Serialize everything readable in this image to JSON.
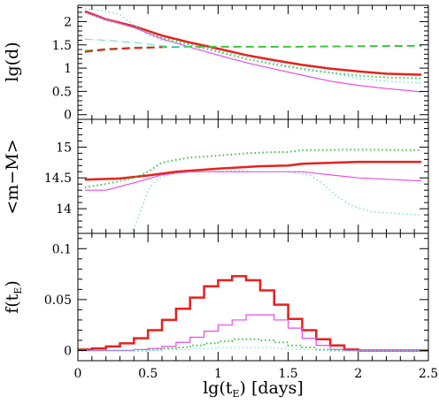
{
  "chart_data": [
    {
      "type": "line",
      "id": "top",
      "ylabel": "lg(d)",
      "xlim": [
        0,
        2.5
      ],
      "ylim": [
        -0.1,
        2.35
      ],
      "xticks": [
        "0",
        "0.5",
        "1",
        "1.5",
        "2",
        "2.5"
      ],
      "yticks": [
        {
          "v": 0,
          "label": "0"
        },
        {
          "v": 0.5,
          "label": "0.5"
        },
        {
          "v": 1,
          "label": "1"
        },
        {
          "v": 1.5,
          "label": "1.5"
        },
        {
          "v": 2,
          "label": "2"
        }
      ],
      "series": [
        {
          "color": "#e8201c",
          "style": "solid",
          "width": 2.5,
          "x": [
            0.05,
            0.2,
            0.4,
            0.6,
            0.8,
            1.0,
            1.2,
            1.4,
            1.6,
            1.8,
            2.0,
            2.2,
            2.45
          ],
          "y": [
            2.22,
            2.05,
            1.9,
            1.7,
            1.55,
            1.42,
            1.28,
            1.17,
            1.07,
            0.99,
            0.93,
            0.88,
            0.86
          ]
        },
        {
          "color": "#3fc43f",
          "style": "dotted",
          "width": 2,
          "x": [
            0.05,
            0.2,
            0.4,
            0.6,
            0.8,
            1.0,
            1.2,
            1.4,
            1.6,
            1.8,
            2.0,
            2.2,
            2.45
          ],
          "y": [
            2.2,
            2.03,
            1.88,
            1.66,
            1.5,
            1.35,
            1.2,
            1.08,
            0.98,
            0.9,
            0.84,
            0.8,
            0.78
          ]
        },
        {
          "color": "#e64ce6",
          "style": "solid",
          "width": 1.2,
          "x": [
            0.05,
            0.2,
            0.4,
            0.6,
            0.8,
            1.0,
            1.2,
            1.4,
            1.6,
            1.8,
            2.0,
            2.2,
            2.45
          ],
          "y": [
            2.2,
            2.05,
            1.87,
            1.63,
            1.45,
            1.28,
            1.12,
            0.98,
            0.85,
            0.72,
            0.63,
            0.56,
            0.49
          ]
        },
        {
          "color": "#5fd4e6",
          "style": "dotted",
          "width": 1.2,
          "x": [
            0.05,
            0.2,
            0.3,
            0.4,
            0.5,
            0.6,
            0.8,
            1.0,
            1.2,
            1.4,
            1.6,
            1.8,
            2.0,
            2.2,
            2.45
          ],
          "y": [
            2.28,
            2.22,
            2.15,
            1.92,
            1.72,
            1.6,
            1.5,
            1.38,
            1.25,
            1.12,
            1.0,
            0.9,
            0.78,
            0.72,
            0.68
          ]
        },
        {
          "color": "#3fc43f",
          "style": "dashed",
          "width": 2,
          "x": [
            0.05,
            0.2,
            0.4,
            0.6,
            0.8,
            1.0,
            1.5,
            2.0,
            2.45
          ],
          "y": [
            1.37,
            1.41,
            1.44,
            1.45,
            1.46,
            1.46,
            1.46,
            1.47,
            1.48
          ]
        },
        {
          "color": "#e8201c",
          "style": "dashed",
          "width": 2,
          "x": [
            0.05,
            0.2,
            0.4,
            0.6
          ],
          "y": [
            1.35,
            1.4,
            1.43,
            1.45
          ]
        },
        {
          "color": "#5fd4e6",
          "style": "dashed",
          "width": 1,
          "x": [
            0.05,
            0.2,
            0.4,
            0.6,
            0.8
          ],
          "y": [
            1.62,
            1.6,
            1.55,
            1.48,
            1.45
          ]
        }
      ]
    },
    {
      "type": "line",
      "id": "middle",
      "ylabel": "<m−M>",
      "xlim": [
        0,
        2.5
      ],
      "ylim": [
        13.6,
        15.45
      ],
      "xticks": [
        "0",
        "0.5",
        "1",
        "1.5",
        "2",
        "2.5"
      ],
      "yticks": [
        {
          "v": 14,
          "label": "14"
        },
        {
          "v": 14.5,
          "label": "14.5"
        },
        {
          "v": 15,
          "label": "15"
        }
      ],
      "series": [
        {
          "color": "#e8201c",
          "style": "solid",
          "width": 2.5,
          "x": [
            0.05,
            0.3,
            0.5,
            0.7,
            1.0,
            1.3,
            1.5,
            1.6,
            2.0,
            2.45
          ],
          "y": [
            14.47,
            14.49,
            14.54,
            14.6,
            14.65,
            14.69,
            14.7,
            14.73,
            14.76,
            14.76
          ]
        },
        {
          "color": "#3fc43f",
          "style": "dotted",
          "width": 2,
          "x": [
            0.05,
            0.2,
            0.4,
            0.5,
            0.6,
            0.8,
            1.0,
            1.2,
            1.4,
            1.5,
            1.6,
            2.0,
            2.45
          ],
          "y": [
            14.35,
            14.4,
            14.5,
            14.6,
            14.75,
            14.83,
            14.86,
            14.9,
            14.92,
            14.92,
            14.95,
            14.96,
            14.95
          ]
        },
        {
          "color": "#e64ce6",
          "style": "solid",
          "width": 1.2,
          "x": [
            0.05,
            0.2,
            0.4,
            0.6,
            0.8,
            1.0,
            1.3,
            1.6,
            1.8,
            2.0,
            2.45
          ],
          "y": [
            14.3,
            14.3,
            14.42,
            14.55,
            14.6,
            14.6,
            14.6,
            14.6,
            14.55,
            14.5,
            14.45
          ]
        },
        {
          "color": "#5fd4e6",
          "style": "dotted",
          "width": 1.2,
          "x": [
            0.38,
            0.42,
            0.47,
            0.5,
            0.55,
            0.6,
            0.7,
            0.9,
            1.1,
            1.3,
            1.5,
            1.65,
            1.75,
            1.85,
            1.95,
            2.1,
            2.3,
            2.45
          ],
          "y": [
            13.6,
            13.8,
            14.1,
            14.3,
            14.45,
            14.52,
            14.58,
            14.6,
            14.62,
            14.6,
            14.6,
            14.55,
            14.4,
            14.2,
            14.05,
            13.95,
            13.92,
            13.9
          ]
        }
      ]
    },
    {
      "type": "bar",
      "id": "bottom",
      "ylabel": "f(t",
      "ylabel_sub": "E",
      "ylabel_close": ")",
      "xlabel": "lg(t",
      "xlabel_sub": "E",
      "xlabel_close": ")  [days]",
      "xlim": [
        0,
        2.5
      ],
      "ylim": [
        -0.01,
        0.115
      ],
      "xticks": [
        "0",
        "0.5",
        "1",
        "1.5",
        "2",
        "2.5"
      ],
      "yticks": [
        {
          "v": 0,
          "label": "0"
        },
        {
          "v": 0.05,
          "label": "0.05"
        },
        {
          "v": 0.1,
          "label": "0.1"
        }
      ],
      "bin_edges": [
        0,
        0.1,
        0.2,
        0.3,
        0.4,
        0.5,
        0.6,
        0.7,
        0.8,
        0.9,
        1.0,
        1.1,
        1.2,
        1.3,
        1.4,
        1.5,
        1.6,
        1.7,
        1.8,
        1.9,
        2.0
      ],
      "series": [
        {
          "color": "#e8201c",
          "width": 2.5,
          "values": [
            0.001,
            0.002,
            0.004,
            0.007,
            0.012,
            0.02,
            0.03,
            0.041,
            0.052,
            0.063,
            0.069,
            0.073,
            0.069,
            0.059,
            0.045,
            0.031,
            0.02,
            0.011,
            0.005,
            0.001
          ]
        },
        {
          "color": "#e64ce6",
          "width": 1.2,
          "values": [
            0.0,
            0.0,
            0.0,
            0.0,
            0.001,
            0.002,
            0.004,
            0.008,
            0.013,
            0.019,
            0.025,
            0.03,
            0.035,
            0.035,
            0.03,
            0.022,
            0.012,
            0.005,
            0.001,
            0.0
          ]
        },
        {
          "color": "#3fc43f",
          "width": 2,
          "style": "dotted",
          "values": [
            0.0,
            0.0,
            0.0,
            0.0,
            0.0,
            0.001,
            0.002,
            0.003,
            0.005,
            0.007,
            0.009,
            0.011,
            0.011,
            0.01,
            0.008,
            0.005,
            0.003,
            0.001,
            0.0,
            0.0
          ]
        },
        {
          "color": "#5fd4e6",
          "width": 1,
          "style": "dotted",
          "values": [
            0.0,
            0.0,
            0.0,
            0.0,
            0.0,
            0.0,
            0.001,
            0.001,
            0.002,
            0.002,
            0.003,
            0.003,
            0.003,
            0.003,
            0.002,
            0.001,
            0.001,
            0.0,
            0.0,
            0.0
          ]
        }
      ]
    }
  ]
}
